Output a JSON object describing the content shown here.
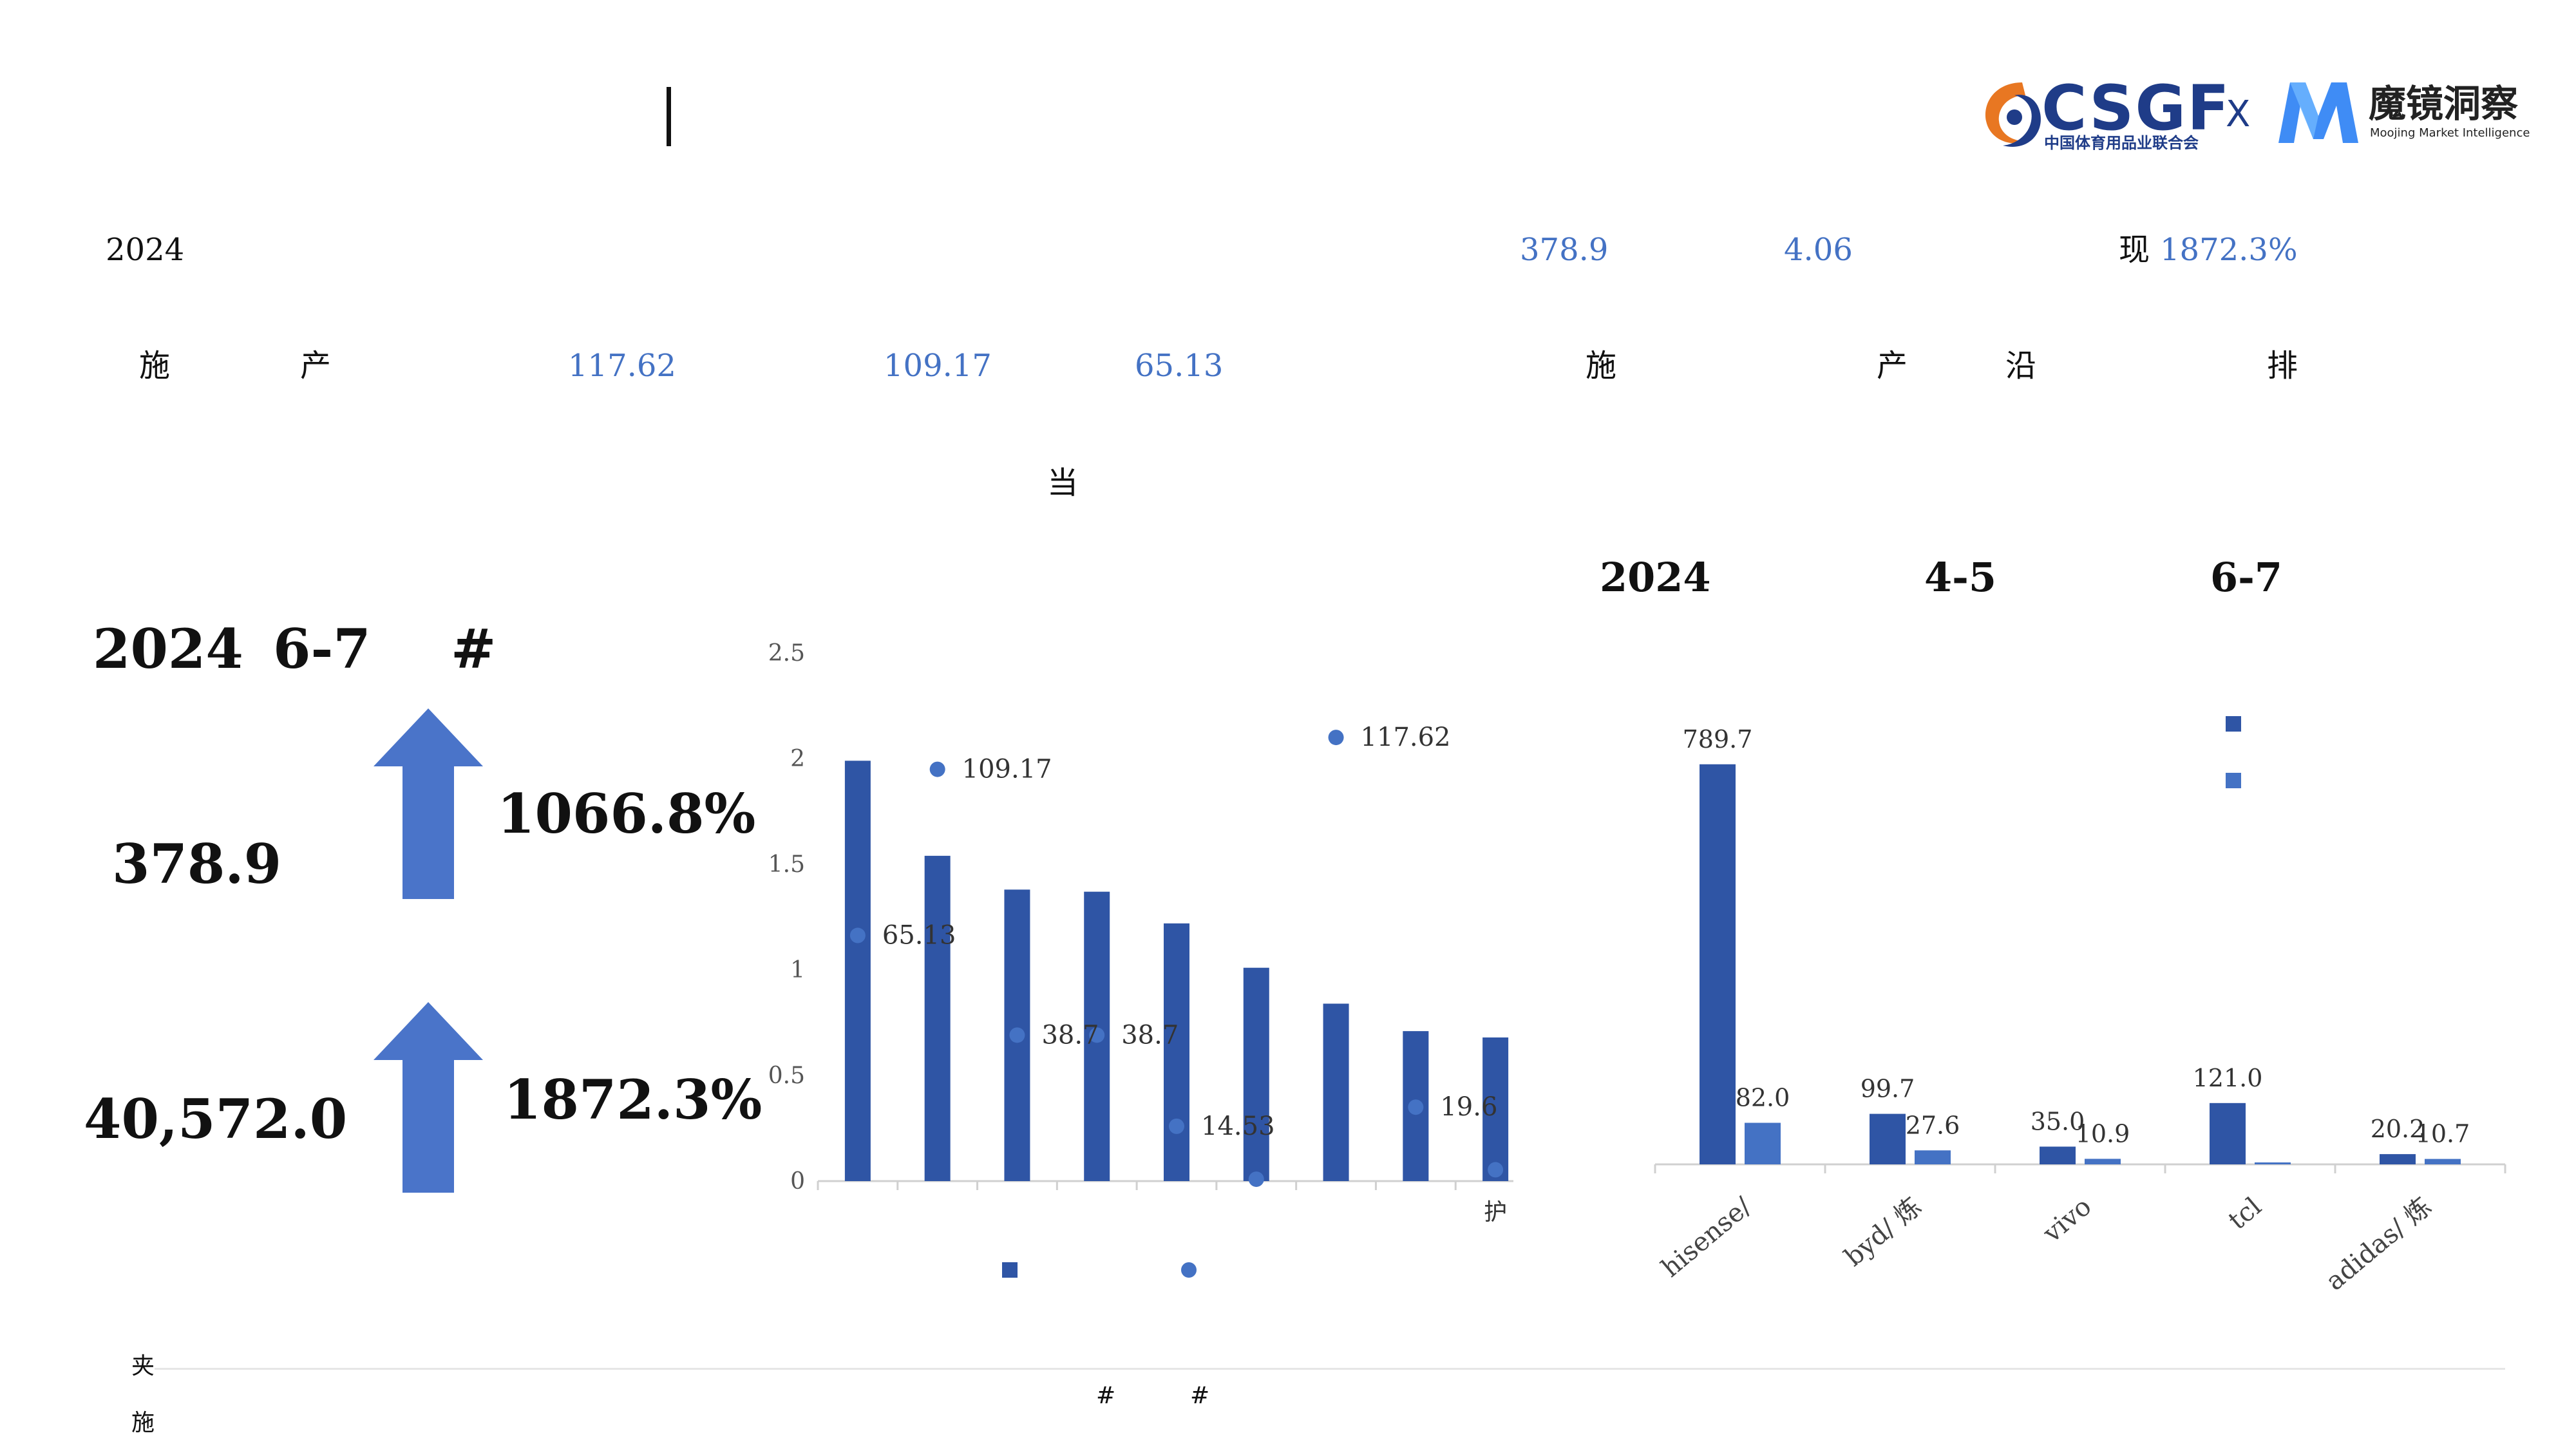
{
  "header": {
    "csgf_logo_text": "CSGF",
    "csgf_subtitle": "中国体育用品业联合会",
    "x_mark": "X",
    "moojing_name": "魔镜洞察",
    "moojing_subtitle": "Moojing Market Intelligence"
  },
  "text_rows": {
    "r1_year": "2024",
    "r1_value1": "378.9",
    "r1_value2": "4.06",
    "r1_pct_prefix": "现",
    "r1_pct": "1872.3%",
    "r2_c1": "施",
    "r2_c2": "产",
    "r2_v1": "117.62",
    "r2_v2": "109.17",
    "r2_v3": "65.13",
    "r2_c3": "施",
    "r2_c4": "产",
    "r2_c5": "沿",
    "r2_c6": "排",
    "r3_c1": "当"
  },
  "kpi": {
    "title_year": "2024",
    "title_period": "6-7",
    "title_hash": "#",
    "value1": "378.9",
    "growth1": "1066.8%",
    "value2": "40,572.0",
    "growth2": "1872.3%"
  },
  "right_titles": {
    "year": "2024",
    "p1": "4-5",
    "p2": "6-7"
  },
  "footer": {
    "note1": "夹",
    "note2": "施",
    "legend_hash1": "#",
    "legend_hash2": "#"
  },
  "colors": {
    "primary": "#2F55A5",
    "accent": "#4472C4",
    "arrow": "#4A74C9"
  },
  "chart_data": [
    {
      "type": "bar",
      "categories": [
        "",
        "",
        "",
        "",
        "",
        "",
        "",
        "",
        "护"
      ],
      "series": [
        {
          "values": [
            1.99,
            1.54,
            1.38,
            1.37,
            1.22,
            1.01,
            0.84,
            0.71,
            0.68
          ],
          "axis": "left"
        },
        {
          "values": [
            65.13,
            109.17,
            38.7,
            38.7,
            14.53,
            0.5,
            117.62,
            19.6,
            3.0
          ],
          "axis": "right",
          "labels": [
            "65.13",
            "109.17",
            "38.7",
            "38.7",
            "14.53",
            "",
            "117.62",
            "19.6",
            ""
          ]
        }
      ],
      "y_left": {
        "ticks": [
          "0",
          "0.5",
          "1",
          "1.5",
          "2",
          "2.5"
        ],
        "ylim": [
          0,
          2.5
        ]
      },
      "y_right": {
        "ticks": [
          "0",
          "20",
          "40",
          "60",
          "80",
          "100",
          "120",
          "140"
        ],
        "ylim": [
          0,
          140
        ]
      },
      "legend": "bottom"
    },
    {
      "type": "bar",
      "categories": [
        "hisense/",
        "byd/ 炼",
        "vivo",
        "tcl",
        "adidas/ 炼"
      ],
      "series": [
        {
          "name": "4-5",
          "values": [
            789.7,
            99.7,
            35.0,
            121.0,
            20.2
          ],
          "labels": [
            "789.7",
            "99.7",
            "35.0",
            "121.0",
            "20.2"
          ]
        },
        {
          "name": "6-7",
          "values": [
            82.0,
            27.6,
            10.9,
            0.0,
            10.7
          ],
          "labels": [
            "82.0",
            "27.6",
            "10.9",
            "",
            "10.7"
          ]
        }
      ],
      "ylim": [
        0,
        900
      ],
      "legend": "top-right"
    }
  ]
}
